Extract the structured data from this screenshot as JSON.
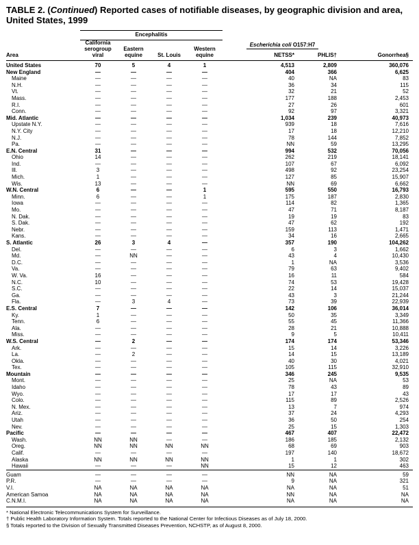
{
  "title": {
    "prefix": "TABLE 2. (",
    "italic": "Continued",
    "suffix": ") Reported cases of notifiable diseases, by geographic division and area, United States, 1999"
  },
  "table": {
    "area_header": "Area",
    "groups": {
      "encephalitis": "Encephalitis",
      "ecoli_italic": "Escherichia coli",
      "ecoli_plain": " O157:H7"
    },
    "columns": [
      "California serogroup viral",
      "Eastern equine",
      "St. Louis",
      "Western equine",
      "NETSS*",
      "PHLIS†",
      "Gonorrhea§"
    ],
    "rows": [
      {
        "area": "United States",
        "bold": true,
        "indent": 0,
        "cells": [
          "70",
          "5",
          "4",
          "1",
          "4,513",
          "2,809",
          "360,076"
        ]
      },
      {
        "area": "New England",
        "bold": true,
        "indent": 0,
        "cells": [
          "—",
          "—",
          "—",
          "—",
          "404",
          "366",
          "6,625"
        ]
      },
      {
        "area": "Maine",
        "indent": 1,
        "cells": [
          "—",
          "—",
          "—",
          "—",
          "40",
          "NA",
          "83"
        ]
      },
      {
        "area": "N.H.",
        "indent": 1,
        "cells": [
          "—",
          "—",
          "—",
          "—",
          "36",
          "34",
          "115"
        ]
      },
      {
        "area": "Vt.",
        "indent": 1,
        "cells": [
          "—",
          "—",
          "—",
          "—",
          "32",
          "21",
          "52"
        ]
      },
      {
        "area": "Mass.",
        "indent": 1,
        "cells": [
          "—",
          "—",
          "—",
          "—",
          "177",
          "188",
          "2,453"
        ]
      },
      {
        "area": "R.I.",
        "indent": 1,
        "cells": [
          "—",
          "—",
          "—",
          "—",
          "27",
          "26",
          "601"
        ]
      },
      {
        "area": "Conn.",
        "indent": 1,
        "cells": [
          "—",
          "—",
          "—",
          "—",
          "92",
          "97",
          "3,321"
        ]
      },
      {
        "area": "Mid. Atlantic",
        "bold": true,
        "indent": 0,
        "cells": [
          "—",
          "—",
          "—",
          "—",
          "1,034",
          "239",
          "40,973"
        ]
      },
      {
        "area": "Upstate N.Y.",
        "indent": 1,
        "cells": [
          "—",
          "—",
          "—",
          "—",
          "939",
          "18",
          "7,616"
        ]
      },
      {
        "area": "N.Y. City",
        "indent": 1,
        "cells": [
          "—",
          "—",
          "—",
          "—",
          "17",
          "18",
          "12,210"
        ]
      },
      {
        "area": "N.J.",
        "indent": 1,
        "cells": [
          "—",
          "—",
          "—",
          "—",
          "78",
          "144",
          "7,852"
        ]
      },
      {
        "area": "Pa.",
        "indent": 1,
        "cells": [
          "—",
          "—",
          "—",
          "—",
          "NN",
          "59",
          "13,295"
        ]
      },
      {
        "area": "E.N. Central",
        "bold": true,
        "indent": 0,
        "cells": [
          "31",
          "—",
          "—",
          "—",
          "994",
          "532",
          "70,056"
        ]
      },
      {
        "area": "Ohio",
        "indent": 1,
        "cells": [
          "14",
          "—",
          "—",
          "—",
          "262",
          "219",
          "18,141"
        ]
      },
      {
        "area": "Ind.",
        "indent": 1,
        "cells": [
          "—",
          "—",
          "—",
          "—",
          "107",
          "67",
          "6,092"
        ]
      },
      {
        "area": "Ill.",
        "indent": 1,
        "cells": [
          "3",
          "—",
          "—",
          "—",
          "498",
          "92",
          "23,254"
        ]
      },
      {
        "area": "Mich.",
        "indent": 1,
        "cells": [
          "1",
          "—",
          "—",
          "—",
          "127",
          "85",
          "15,907"
        ]
      },
      {
        "area": "Wis.",
        "indent": 1,
        "cells": [
          "13",
          "—",
          "—",
          "—",
          "NN",
          "69",
          "6,662"
        ]
      },
      {
        "area": "W.N. Central",
        "bold": true,
        "indent": 0,
        "cells": [
          "6",
          "—",
          "—",
          "1",
          "595",
          "550",
          "16,793"
        ]
      },
      {
        "area": "Minn.",
        "indent": 1,
        "cells": [
          "6",
          "—",
          "—",
          "1",
          "175",
          "187",
          "2,830"
        ]
      },
      {
        "area": "Iowa",
        "indent": 1,
        "cells": [
          "—",
          "—",
          "—",
          "—",
          "114",
          "82",
          "1,365"
        ]
      },
      {
        "area": "Mo.",
        "indent": 1,
        "cells": [
          "—",
          "—",
          "—",
          "—",
          "47",
          "71",
          "8,187"
        ]
      },
      {
        "area": "N. Dak.",
        "indent": 1,
        "cells": [
          "—",
          "—",
          "—",
          "—",
          "19",
          "19",
          "83"
        ]
      },
      {
        "area": "S. Dak.",
        "indent": 1,
        "cells": [
          "—",
          "—",
          "—",
          "—",
          "47",
          "62",
          "192"
        ]
      },
      {
        "area": "Nebr.",
        "indent": 1,
        "cells": [
          "—",
          "—",
          "—",
          "—",
          "159",
          "113",
          "1,471"
        ]
      },
      {
        "area": "Kans.",
        "indent": 1,
        "cells": [
          "—",
          "—",
          "—",
          "—",
          "34",
          "16",
          "2,665"
        ]
      },
      {
        "area": "S. Atlantic",
        "bold": true,
        "indent": 0,
        "cells": [
          "26",
          "3",
          "4",
          "—",
          "357",
          "190",
          "104,262"
        ]
      },
      {
        "area": "Del.",
        "indent": 1,
        "cells": [
          "—",
          "—",
          "—",
          "—",
          "6",
          "3",
          "1,662"
        ]
      },
      {
        "area": "Md.",
        "indent": 1,
        "cells": [
          "—",
          "NN",
          "—",
          "—",
          "43",
          "4",
          "10,430"
        ]
      },
      {
        "area": "D.C.",
        "indent": 1,
        "cells": [
          "—",
          "—",
          "—",
          "—",
          "1",
          "NA",
          "3,536"
        ]
      },
      {
        "area": "Va.",
        "indent": 1,
        "cells": [
          "—",
          "—",
          "—",
          "—",
          "79",
          "63",
          "9,402"
        ]
      },
      {
        "area": "W. Va.",
        "indent": 1,
        "cells": [
          "16",
          "—",
          "—",
          "—",
          "16",
          "11",
          "584"
        ]
      },
      {
        "area": "N.C.",
        "indent": 1,
        "cells": [
          "10",
          "—",
          "—",
          "—",
          "74",
          "53",
          "19,428"
        ]
      },
      {
        "area": "S.C.",
        "indent": 1,
        "cells": [
          "—",
          "—",
          "—",
          "—",
          "22",
          "14",
          "15,037"
        ]
      },
      {
        "area": "Ga.",
        "indent": 1,
        "cells": [
          "—",
          "—",
          "—",
          "—",
          "43",
          "3",
          "21,244"
        ]
      },
      {
        "area": "Fla.",
        "indent": 1,
        "cells": [
          "—",
          "3",
          "4",
          "—",
          "73",
          "39",
          "22,939"
        ]
      },
      {
        "area": "E.S. Central",
        "bold": true,
        "indent": 0,
        "cells": [
          "7",
          "—",
          "—",
          "—",
          "142",
          "106",
          "36,014"
        ]
      },
      {
        "area": "Ky.",
        "indent": 1,
        "cells": [
          "1",
          "—",
          "—",
          "—",
          "50",
          "35",
          "3,349"
        ]
      },
      {
        "area": "Tenn.",
        "indent": 1,
        "cells": [
          "6",
          "—",
          "—",
          "—",
          "55",
          "45",
          "11,366"
        ]
      },
      {
        "area": "Ala.",
        "indent": 1,
        "cells": [
          "—",
          "—",
          "—",
          "—",
          "28",
          "21",
          "10,888"
        ]
      },
      {
        "area": "Miss.",
        "indent": 1,
        "cells": [
          "—",
          "—",
          "—",
          "—",
          "9",
          "5",
          "10,411"
        ]
      },
      {
        "area": "W.S. Central",
        "bold": true,
        "indent": 0,
        "cells": [
          "—",
          "2",
          "—",
          "—",
          "174",
          "174",
          "53,346"
        ]
      },
      {
        "area": "Ark.",
        "indent": 1,
        "cells": [
          "—",
          "—",
          "—",
          "—",
          "15",
          "14",
          "3,226"
        ]
      },
      {
        "area": "La.",
        "indent": 1,
        "cells": [
          "—",
          "2",
          "—",
          "—",
          "14",
          "15",
          "13,189"
        ]
      },
      {
        "area": "Okla.",
        "indent": 1,
        "cells": [
          "—",
          "—",
          "—",
          "—",
          "40",
          "30",
          "4,021"
        ]
      },
      {
        "area": "Tex.",
        "indent": 1,
        "cells": [
          "—",
          "—",
          "—",
          "—",
          "105",
          "115",
          "32,910"
        ]
      },
      {
        "area": "Mountain",
        "bold": true,
        "indent": 0,
        "cells": [
          "—",
          "—",
          "—",
          "—",
          "346",
          "245",
          "9,535"
        ]
      },
      {
        "area": "Mont.",
        "indent": 1,
        "cells": [
          "—",
          "—",
          "—",
          "—",
          "25",
          "NA",
          "53"
        ]
      },
      {
        "area": "Idaho",
        "indent": 1,
        "cells": [
          "—",
          "—",
          "—",
          "—",
          "78",
          "43",
          "89"
        ]
      },
      {
        "area": "Wyo.",
        "indent": 1,
        "cells": [
          "—",
          "—",
          "—",
          "—",
          "17",
          "17",
          "43"
        ]
      },
      {
        "area": "Colo.",
        "indent": 1,
        "cells": [
          "—",
          "—",
          "—",
          "—",
          "115",
          "89",
          "2,526"
        ]
      },
      {
        "area": "N. Mex.",
        "indent": 1,
        "cells": [
          "—",
          "—",
          "—",
          "—",
          "13",
          "7",
          "974"
        ]
      },
      {
        "area": "Ariz.",
        "indent": 1,
        "cells": [
          "—",
          "—",
          "—",
          "—",
          "37",
          "24",
          "4,293"
        ]
      },
      {
        "area": "Utah",
        "indent": 1,
        "cells": [
          "—",
          "—",
          "—",
          "—",
          "36",
          "50",
          "254"
        ]
      },
      {
        "area": "Nev.",
        "indent": 1,
        "cells": [
          "—",
          "—",
          "—",
          "—",
          "25",
          "15",
          "1,303"
        ]
      },
      {
        "area": "Pacific",
        "bold": true,
        "indent": 0,
        "cells": [
          "—",
          "—",
          "—",
          "—",
          "467",
          "407",
          "22,472"
        ]
      },
      {
        "area": "Wash.",
        "indent": 1,
        "cells": [
          "NN",
          "NN",
          "—",
          "—",
          "186",
          "185",
          "2,132"
        ]
      },
      {
        "area": "Oreg.",
        "indent": 1,
        "cells": [
          "NN",
          "NN",
          "NN",
          "NN",
          "68",
          "69",
          "903"
        ]
      },
      {
        "area": "Calif.",
        "indent": 1,
        "cells": [
          "—",
          "—",
          "—",
          "—",
          "197",
          "140",
          "18,672"
        ]
      },
      {
        "area": "Alaska",
        "indent": 1,
        "cells": [
          "NN",
          "NN",
          "NN",
          "NN",
          "1",
          "1",
          "302"
        ]
      },
      {
        "area": "Hawaii",
        "indent": 1,
        "cells": [
          "—",
          "—",
          "—",
          "NN",
          "15",
          "12",
          "463"
        ]
      },
      {
        "area": "Guam",
        "indent": 0,
        "sep": true,
        "cells": [
          "—",
          "—",
          "—",
          "—",
          "NN",
          "NA",
          "59"
        ]
      },
      {
        "area": "P.R.",
        "indent": 0,
        "cells": [
          "—",
          "—",
          "—",
          "—",
          "9",
          "NA",
          "321"
        ]
      },
      {
        "area": "V.I.",
        "indent": 0,
        "cells": [
          "NA",
          "NA",
          "NA",
          "NA",
          "NA",
          "NA",
          "51"
        ]
      },
      {
        "area": "American Samoa",
        "indent": 0,
        "cells": [
          "NA",
          "NA",
          "NA",
          "NA",
          "NN",
          "NA",
          "NA"
        ]
      },
      {
        "area": "C.N.M.I.",
        "indent": 0,
        "cells": [
          "NA",
          "NA",
          "NA",
          "NA",
          "NA",
          "NA",
          "NA"
        ]
      }
    ]
  },
  "footnotes": [
    "* National Electronic Telecommunications System for Surveillance.",
    "† Public Health Laboratory Information System. Totals reported to the National Center for Infectious Diseases as of July 18, 2000.",
    "§ Totals reported to the Division of Sexually Transmitted Diseases Prevention, NCHSTP, as of August 8, 2000."
  ]
}
